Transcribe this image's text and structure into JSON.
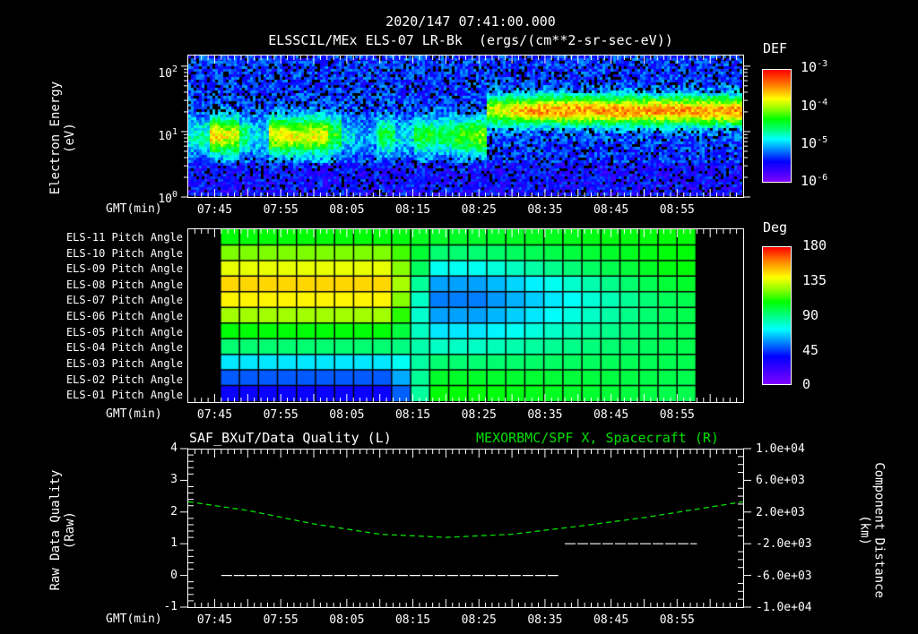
{
  "header": {
    "timestamp": "2020/147 07:41:00.000",
    "title": "ELSSCIL/MEx ELS-07 LR-Bk  (ergs/(cm**2-sr-sec-eV))"
  },
  "panel1": {
    "ylabel_line1": "Electron Energy",
    "ylabel_line2": "(eV)",
    "yticks": [
      {
        "base": "10",
        "exp": "2"
      },
      {
        "base": "10",
        "exp": "1"
      },
      {
        "base": "10",
        "exp": "0"
      }
    ],
    "xlabel": "GMT(min)",
    "colorbar": {
      "title": "DEF",
      "ticks": [
        {
          "base": "10",
          "exp": "-3"
        },
        {
          "base": "10",
          "exp": "-4"
        },
        {
          "base": "10",
          "exp": "-5"
        },
        {
          "base": "10",
          "exp": "-6"
        }
      ]
    }
  },
  "panel2": {
    "row_labels": [
      "ELS-11 Pitch Angle",
      "ELS-10 Pitch Angle",
      "ELS-09 Pitch Angle",
      "ELS-08 Pitch Angle",
      "ELS-07 Pitch Angle",
      "ELS-06 Pitch Angle",
      "ELS-05 Pitch Angle",
      "ELS-04 Pitch Angle",
      "ELS-03 Pitch Angle",
      "ELS-02 Pitch Angle",
      "ELS-01 Pitch Angle"
    ],
    "xlabel": "GMT(min)",
    "colorbar": {
      "title": "Deg",
      "ticks": [
        "180",
        "135",
        "90",
        "45",
        "0"
      ]
    }
  },
  "panel3": {
    "title_left": "SAF_BXuT/Data Quality (L)",
    "title_right": "MEXORBMC/SPF X, Spacecraft (R)",
    "title_right_color": "#00e000",
    "ylabel_left_line1": "Raw Data Quality",
    "ylabel_left_line2": "(Raw)",
    "yticks_left": [
      "4",
      "3",
      "2",
      "1",
      "0",
      "-1"
    ],
    "ylabel_right_line1": "Component Distance",
    "ylabel_right_line2": "(km)",
    "yticks_right": [
      "1.0e+04",
      "6.0e+03",
      "2.0e+03",
      "-2.0e+03",
      "-6.0e+03",
      "-1.0e+04"
    ],
    "xlabel": "GMT(min)"
  },
  "xticks": [
    "07:45",
    "07:55",
    "08:05",
    "08:15",
    "08:25",
    "08:35",
    "08:45",
    "08:55"
  ],
  "chart_data": [
    {
      "type": "heatmap",
      "title": "ELSSCIL/MEx ELS-07 LR-Bk (ergs/(cm**2-sr-sec-eV))",
      "subtitle": "2020/147 07:41:00.000",
      "xlabel": "GMT(min)",
      "ylabel": "Electron Energy (eV)",
      "yscale": "log",
      "ylim": [
        1,
        150
      ],
      "x_range": [
        "07:41",
        "09:05"
      ],
      "x_tick_labels": [
        "07:45",
        "07:55",
        "08:05",
        "08:15",
        "08:25",
        "08:35",
        "08:45",
        "08:55"
      ],
      "colorbar": {
        "label": "DEF",
        "scale": "log",
        "range": [
          1e-06,
          0.001
        ]
      },
      "description": "Noisy blue background; intermittent cyan-green bursts near 5-20 eV from 07:42-08:15; persistent green band ~10-30 eV (peak ~1e-4) from 08:28 onward"
    },
    {
      "type": "heatmap",
      "title": "ELS Pitch Angle",
      "xlabel": "GMT(min)",
      "rows": [
        "ELS-11",
        "ELS-10",
        "ELS-09",
        "ELS-08",
        "ELS-07",
        "ELS-06",
        "ELS-05",
        "ELS-04",
        "ELS-03",
        "ELS-02",
        "ELS-01"
      ],
      "x_range": [
        "07:41",
        "09:05"
      ],
      "data_x_range": [
        "07:46",
        "08:58"
      ],
      "colorbar": {
        "label": "Deg",
        "range": [
          0,
          180
        ],
        "ticks": [
          0,
          45,
          90,
          135,
          180
        ]
      },
      "approx_values_early": [
        100,
        115,
        130,
        140,
        135,
        120,
        100,
        85,
        65,
        45,
        30
      ],
      "approx_values_mid_0820": [
        95,
        85,
        70,
        55,
        50,
        55,
        65,
        75,
        85,
        95,
        100
      ],
      "approx_values_late_0855": [
        100,
        100,
        100,
        95,
        90,
        90,
        90,
        90,
        90,
        90,
        90
      ]
    },
    {
      "type": "line",
      "title": "SAF_BXuT/Data Quality (L) ; MEXORBMC/SPF X, Spacecraft (R)",
      "xlabel": "GMT(min)",
      "x_tick_labels": [
        "07:45",
        "07:55",
        "08:05",
        "08:15",
        "08:25",
        "08:35",
        "08:45",
        "08:55"
      ],
      "series": [
        {
          "name": "Data Quality (L)",
          "axis": "left",
          "color": "#ffffff",
          "x": [
            "07:46",
            "08:37",
            "08:38",
            "08:58"
          ],
          "values": [
            0,
            0,
            1,
            1
          ]
        },
        {
          "name": "SPF X, Spacecraft (R)",
          "axis": "right",
          "color": "#00e000",
          "style": "dashed",
          "x": [
            "07:41",
            "07:50",
            "08:00",
            "08:10",
            "08:20",
            "08:30",
            "08:40",
            "08:50",
            "09:05"
          ],
          "values": [
            3300,
            2200,
            500,
            -800,
            -1200,
            -800,
            200,
            1300,
            3300
          ]
        }
      ],
      "ylim_left": [
        -1,
        4
      ],
      "ylim_right": [
        -10000,
        10000
      ],
      "ylabel_left": "Raw Data Quality (Raw)",
      "ylabel_right": "Component Distance (km)"
    }
  ]
}
